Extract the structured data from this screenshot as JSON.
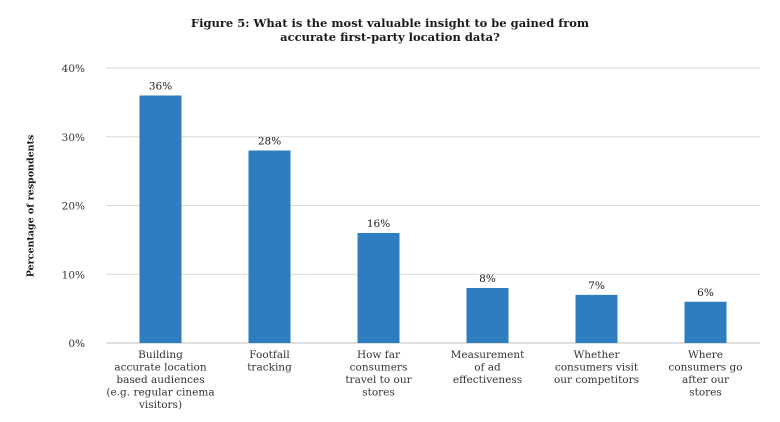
{
  "chart_data": {
    "type": "bar",
    "title": [
      "Figure 5: What is the most valuable insight to be gained from",
      "accurate first-party location data?"
    ],
    "xlabel": "",
    "ylabel": "Percentage of respondents",
    "ylim": [
      0,
      40
    ],
    "yticks": [
      0,
      10,
      20,
      30,
      40
    ],
    "ytick_labels": [
      "0%",
      "10%",
      "20%",
      "30%",
      "40%"
    ],
    "categories": [
      [
        "Building",
        "accurate location",
        "based audiences",
        "(e.g. regular cinema",
        "visitors)"
      ],
      [
        "Footfall",
        "tracking"
      ],
      [
        "How far",
        "consumers",
        "travel to our",
        "stores"
      ],
      [
        "Measurement",
        "of ad",
        "effectiveness"
      ],
      [
        "Whether",
        "consumers visit",
        "our competitors"
      ],
      [
        "Where",
        "consumers go",
        "after our",
        "stores"
      ]
    ],
    "values": [
      36,
      28,
      16,
      8,
      7,
      6
    ],
    "value_labels": [
      "36%",
      "28%",
      "16%",
      "8%",
      "7%",
      "6%"
    ],
    "bar_color": "#2e7ebf",
    "grid": true,
    "grid_color": "#d9d9d9"
  }
}
